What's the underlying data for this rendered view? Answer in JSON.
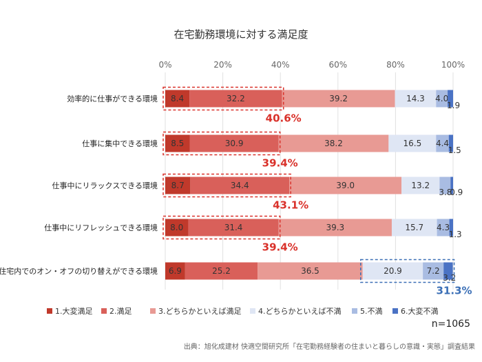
{
  "chart_data": {
    "type": "bar",
    "orientation": "horizontal",
    "stacked": "100%",
    "title": "在宅勤務環境に対する満足度",
    "categories": [
      "効率的に仕事ができる環境",
      "仕事に集中できる環境",
      "仕事中にリラックスできる環境",
      "仕事中にリフレッシュできる環境",
      "住宅内でのオン・オフの切り替えができる環境"
    ],
    "x_ticks": [
      "0%",
      "20%",
      "40%",
      "60%",
      "80%",
      "100%"
    ],
    "xlim": [
      0,
      100
    ],
    "grid": true,
    "legend_position": "bottom",
    "series": [
      {
        "name": "1.大変満足",
        "color": "#c0392b",
        "values": [
          8.4,
          8.5,
          8.7,
          8.0,
          6.9
        ]
      },
      {
        "name": "2.満足",
        "color": "#d9605a",
        "values": [
          32.2,
          30.9,
          34.4,
          31.4,
          25.2
        ]
      },
      {
        "name": "3.どちらかといえば満足",
        "color": "#e89a94",
        "values": [
          39.2,
          38.2,
          39.0,
          39.3,
          36.5
        ]
      },
      {
        "name": "4.どちらかといえば不満",
        "color": "#dfe6f4",
        "values": [
          14.3,
          16.5,
          13.2,
          15.7,
          20.9
        ]
      },
      {
        "name": "5.不満",
        "color": "#a9bce2",
        "values": [
          4.0,
          4.4,
          3.8,
          4.3,
          7.2
        ]
      },
      {
        "name": "6.大変不満",
        "color": "#4a72c4",
        "values": [
          1.9,
          1.5,
          0.9,
          1.3,
          3.2
        ]
      }
    ],
    "annotations": [
      {
        "label": "40.6%",
        "category_index": 0,
        "series_range": [
          0,
          1
        ],
        "color": "#d9312a"
      },
      {
        "label": "39.4%",
        "category_index": 1,
        "series_range": [
          0,
          1
        ],
        "color": "#d9312a"
      },
      {
        "label": "43.1%",
        "category_index": 2,
        "series_range": [
          0,
          1
        ],
        "color": "#d9312a"
      },
      {
        "label": "39.4%",
        "category_index": 3,
        "series_range": [
          0,
          1
        ],
        "color": "#d9312a"
      },
      {
        "label": "31.3%",
        "category_index": 4,
        "series_range": [
          3,
          5
        ],
        "color": "#3b6fb6"
      }
    ],
    "sample_size": "n=1065",
    "source": "出典：旭化成建材 快適空間研究所「在宅勤務経験者の住まいと暮らしの意識・実態」調査結果"
  }
}
